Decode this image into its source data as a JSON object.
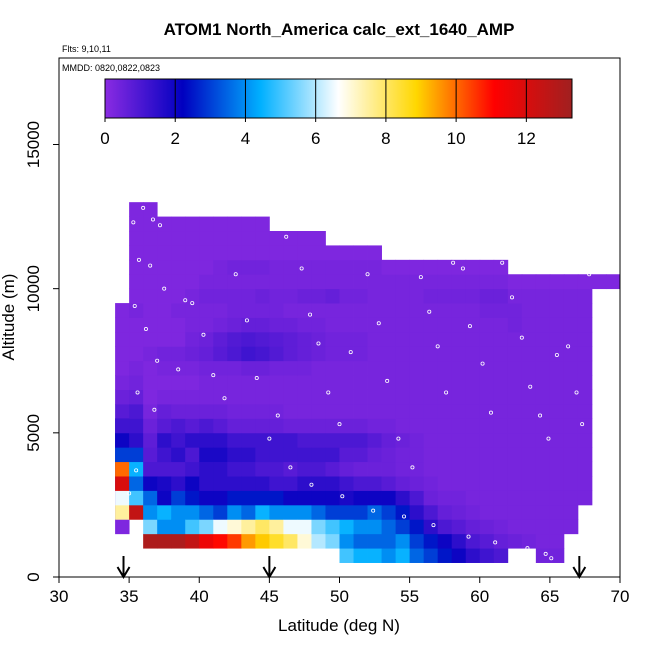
{
  "chart_data": {
    "type": "heatmap",
    "title": "ATOM1 North_America calc_ext_1640_AMP",
    "flights_note": "Flts: 9,10,11",
    "dates_note": "MMDD: 0820,0822,0823",
    "xlabel": "Latitude (deg N)",
    "ylabel": "Altitude (m)",
    "xlim": [
      30,
      70
    ],
    "ylim": [
      0,
      18000
    ],
    "x_ticks": [
      30,
      35,
      40,
      45,
      50,
      55,
      60,
      65,
      70
    ],
    "y_ticks": [
      0,
      5000,
      10000,
      15000
    ],
    "colorbar": {
      "range": [
        0,
        13.3
      ],
      "ticks": [
        0,
        2,
        4,
        6,
        8,
        10,
        12
      ],
      "stops": [
        "#8a2be2",
        "#0000c0",
        "#00b0ff",
        "#ffffff",
        "#ffd700",
        "#ff0000",
        "#a02020"
      ]
    },
    "bin_width_deg": 1,
    "bin_height_m": 500,
    "columns": [
      {
        "lat": 34.5,
        "alt_min": 1500,
        "alt_max": 9500,
        "values": [
          0.2,
          0.3,
          0.6,
          1.0,
          1.5,
          1.8,
          2.0,
          1.5,
          0.8,
          0.5,
          0.3,
          0.2,
          0.2,
          0.2,
          0.2,
          0.2
        ]
      },
      {
        "lat": 34.5,
        "alt_min": 2000,
        "alt_max": 5500,
        "values": [
          7.5,
          6.5,
          12.0,
          10.0,
          3.0,
          2.0,
          1.2
        ]
      },
      {
        "lat": 35.5,
        "alt_min": 2000,
        "alt_max": 13000,
        "values": [
          12.5,
          5.0,
          3.5,
          4.5,
          3.0,
          1.5,
          1.2,
          1.0,
          0.6,
          0.4,
          0.3,
          0.2,
          0.2,
          0.2,
          0.3,
          0.2,
          0.2,
          0.2,
          0.2,
          0.2,
          0.2,
          0.2
        ]
      },
      {
        "lat": 36.5,
        "alt_min": 1000,
        "alt_max": 13000,
        "values": [
          13.0,
          5.5,
          4.0,
          3.5,
          2.0,
          1.0,
          0.8,
          0.7,
          0.5,
          0.3,
          0.2,
          0.2,
          0.2,
          0.3,
          0.2,
          0.2,
          0.2,
          0.2,
          0.2,
          0.2,
          0.2,
          0.2,
          0.2,
          0.2
        ]
      },
      {
        "lat": 37.5,
        "alt_min": 1000,
        "alt_max": 12500,
        "values": [
          13.0,
          4.0,
          4.5,
          2.0,
          1.8,
          1.0,
          1.2,
          1.5,
          0.8,
          0.6,
          0.3,
          0.2,
          0.3,
          0.4,
          0.2,
          0.2,
          0.2,
          0.2,
          0.2,
          0.2,
          0.2,
          0.2,
          0.2
        ]
      },
      {
        "lat": 38.5,
        "alt_min": 1000,
        "alt_max": 12500,
        "values": [
          13.0,
          4.0,
          4.0,
          3.0,
          1.5,
          1.0,
          1.5,
          1.2,
          1.0,
          0.5,
          0.3,
          0.2,
          0.3,
          0.4,
          0.2,
          0.2,
          0.3,
          0.2,
          0.2,
          0.2,
          0.2,
          0.2,
          0.2
        ]
      },
      {
        "lat": 39.5,
        "alt_min": 1000,
        "alt_max": 12500,
        "values": [
          12.5,
          5.0,
          4.0,
          2.5,
          2.0,
          1.2,
          1.0,
          1.5,
          0.8,
          0.5,
          0.3,
          0.2,
          0.3,
          0.5,
          0.4,
          0.3,
          0.3,
          0.3,
          0.2,
          0.2,
          0.2,
          0.2,
          0.2
        ]
      },
      {
        "lat": 40.5,
        "alt_min": 1000,
        "alt_max": 12500,
        "values": [
          11.5,
          5.5,
          3.5,
          2.0,
          1.5,
          1.5,
          1.8,
          1.5,
          1.0,
          0.5,
          0.3,
          0.3,
          0.4,
          0.6,
          0.5,
          0.3,
          0.3,
          0.4,
          0.3,
          0.2,
          0.2,
          0.2,
          0.2
        ]
      },
      {
        "lat": 41.5,
        "alt_min": 1000,
        "alt_max": 12500,
        "values": [
          11.0,
          6.5,
          3.0,
          2.0,
          1.5,
          1.5,
          1.8,
          1.5,
          0.8,
          0.5,
          0.3,
          0.3,
          0.4,
          0.8,
          0.7,
          0.4,
          0.3,
          0.4,
          0.3,
          0.3,
          0.2,
          0.2,
          0.2
        ]
      },
      {
        "lat": 42.5,
        "alt_min": 1000,
        "alt_max": 12500,
        "values": [
          10.5,
          7.0,
          4.0,
          2.5,
          1.5,
          1.2,
          1.5,
          1.2,
          0.6,
          0.4,
          0.3,
          0.3,
          0.4,
          1.0,
          0.9,
          0.5,
          0.4,
          0.4,
          0.3,
          0.4,
          0.2,
          0.2,
          0.2
        ]
      },
      {
        "lat": 43.5,
        "alt_min": 1000,
        "alt_max": 12500,
        "values": [
          9.5,
          7.5,
          3.5,
          2.5,
          1.5,
          1.2,
          1.5,
          1.2,
          0.6,
          0.4,
          0.3,
          0.3,
          0.5,
          1.2,
          1.0,
          0.6,
          0.4,
          0.4,
          0.3,
          0.4,
          0.2,
          0.2,
          0.2
        ]
      },
      {
        "lat": 44.5,
        "alt_min": 1000,
        "alt_max": 12500,
        "values": [
          9.0,
          8.0,
          4.5,
          2.5,
          1.5,
          1.0,
          1.2,
          1.2,
          0.6,
          0.4,
          0.3,
          0.3,
          0.5,
          1.1,
          0.9,
          0.6,
          0.4,
          0.5,
          0.3,
          0.4,
          0.2,
          0.2,
          0.2
        ]
      },
      {
        "lat": 45.5,
        "alt_min": 1000,
        "alt_max": 12000,
        "values": [
          8.5,
          7.5,
          4.0,
          2.5,
          1.2,
          1.0,
          1.2,
          1.2,
          0.6,
          0.4,
          0.3,
          0.3,
          0.4,
          0.9,
          0.8,
          0.5,
          0.4,
          0.4,
          0.3,
          0.3,
          0.2,
          0.2
        ]
      },
      {
        "lat": 46.5,
        "alt_min": 1000,
        "alt_max": 12000,
        "values": [
          8.0,
          6.5,
          4.0,
          2.0,
          1.2,
          0.8,
          1.2,
          1.2,
          0.5,
          0.3,
          0.3,
          0.3,
          0.4,
          0.7,
          0.7,
          0.5,
          0.3,
          0.4,
          0.3,
          0.3,
          0.2,
          0.2
        ]
      },
      {
        "lat": 47.5,
        "alt_min": 1000,
        "alt_max": 12000,
        "values": [
          7.0,
          6.5,
          4.0,
          2.0,
          1.5,
          1.0,
          1.2,
          1.0,
          0.5,
          0.3,
          0.3,
          0.3,
          0.4,
          0.6,
          0.6,
          0.4,
          0.3,
          0.5,
          0.3,
          0.3,
          0.2,
          0.2
        ]
      },
      {
        "lat": 48.5,
        "alt_min": 1000,
        "alt_max": 12000,
        "values": [
          6.0,
          5.5,
          3.5,
          2.0,
          1.5,
          1.0,
          1.2,
          1.0,
          0.5,
          0.3,
          0.3,
          0.3,
          0.3,
          0.5,
          0.5,
          0.4,
          0.3,
          0.5,
          0.3,
          0.3,
          0.2,
          0.2
        ]
      },
      {
        "lat": 49.5,
        "alt_min": 1000,
        "alt_max": 11500,
        "values": [
          5.5,
          5.0,
          3.0,
          2.0,
          1.5,
          0.8,
          1.2,
          1.0,
          0.5,
          0.3,
          0.3,
          0.3,
          0.3,
          0.4,
          0.4,
          0.3,
          0.3,
          0.6,
          0.3,
          0.3,
          0.2
        ]
      },
      {
        "lat": 50.5,
        "alt_min": 500,
        "alt_max": 11500,
        "values": [
          5.0,
          4.0,
          4.5,
          3.0,
          1.8,
          1.2,
          0.6,
          0.8,
          1.0,
          0.5,
          0.3,
          0.3,
          0.3,
          0.3,
          0.4,
          0.4,
          0.3,
          0.3,
          0.4,
          0.3,
          0.3,
          0.2
        ]
      },
      {
        "lat": 51.5,
        "alt_min": 500,
        "alt_max": 11500,
        "values": [
          4.5,
          3.5,
          4.0,
          3.0,
          2.0,
          1.0,
          0.5,
          0.8,
          1.0,
          0.5,
          0.3,
          0.3,
          0.3,
          0.3,
          0.4,
          0.4,
          0.3,
          0.3,
          0.4,
          0.3,
          0.3,
          0.2
        ]
      },
      {
        "lat": 52.5,
        "alt_min": 500,
        "alt_max": 11500,
        "values": [
          4.5,
          3.5,
          4.0,
          3.5,
          2.0,
          1.0,
          0.5,
          0.6,
          0.8,
          0.4,
          0.3,
          0.3,
          0.3,
          0.3,
          0.3,
          0.3,
          0.3,
          0.3,
          0.3,
          0.3,
          0.3,
          0.2
        ]
      },
      {
        "lat": 53.5,
        "alt_min": 500,
        "alt_max": 11000,
        "values": [
          4.0,
          3.5,
          3.5,
          3.0,
          2.0,
          0.8,
          0.5,
          0.5,
          0.6,
          0.4,
          0.3,
          0.3,
          0.3,
          0.3,
          0.3,
          0.3,
          0.3,
          0.3,
          0.3,
          0.3,
          0.2
        ]
      },
      {
        "lat": 54.5,
        "alt_min": 500,
        "alt_max": 11000,
        "values": [
          4.5,
          4.0,
          3.0,
          2.5,
          1.5,
          0.6,
          0.4,
          0.4,
          0.5,
          0.3,
          0.3,
          0.3,
          0.3,
          0.3,
          0.3,
          0.3,
          0.3,
          0.3,
          0.3,
          0.3,
          0.2
        ]
      },
      {
        "lat": 55.5,
        "alt_min": 500,
        "alt_max": 11000,
        "values": [
          3.5,
          3.0,
          2.5,
          1.5,
          1.0,
          0.5,
          0.4,
          0.4,
          0.4,
          0.3,
          0.3,
          0.3,
          0.3,
          0.3,
          0.3,
          0.3,
          0.3,
          0.3,
          0.3,
          0.3,
          0.2
        ]
      },
      {
        "lat": 56.5,
        "alt_min": 500,
        "alt_max": 11000,
        "values": [
          3.0,
          2.5,
          1.5,
          1.0,
          0.5,
          0.4,
          0.3,
          0.3,
          0.3,
          0.3,
          0.3,
          0.3,
          0.3,
          0.3,
          0.3,
          0.3,
          0.3,
          0.3,
          0.4,
          0.3,
          0.2
        ]
      },
      {
        "lat": 57.5,
        "alt_min": 500,
        "alt_max": 11000,
        "values": [
          2.5,
          2.0,
          1.0,
          0.6,
          0.4,
          0.3,
          0.3,
          0.3,
          0.3,
          0.3,
          0.3,
          0.3,
          0.3,
          0.3,
          0.3,
          0.3,
          0.3,
          0.3,
          0.4,
          0.3,
          0.2
        ]
      },
      {
        "lat": 58.5,
        "alt_min": 500,
        "alt_max": 11000,
        "values": [
          2.0,
          1.5,
          0.8,
          0.5,
          0.4,
          0.3,
          0.3,
          0.3,
          0.3,
          0.3,
          0.3,
          0.3,
          0.3,
          0.3,
          0.3,
          0.3,
          0.3,
          0.3,
          0.4,
          0.3,
          0.2
        ]
      },
      {
        "lat": 59.5,
        "alt_min": 500,
        "alt_max": 11000,
        "values": [
          1.5,
          1.0,
          0.6,
          0.4,
          0.3,
          0.3,
          0.3,
          0.3,
          0.3,
          0.3,
          0.3,
          0.3,
          0.3,
          0.3,
          0.3,
          0.3,
          0.3,
          0.3,
          0.4,
          0.3,
          0.2
        ]
      },
      {
        "lat": 60.5,
        "alt_min": 500,
        "alt_max": 11000,
        "values": [
          1.2,
          0.8,
          0.5,
          0.3,
          0.3,
          0.3,
          0.3,
          0.3,
          0.3,
          0.3,
          0.3,
          0.3,
          0.3,
          0.3,
          0.3,
          0.3,
          0.3,
          0.4,
          0.5,
          0.3,
          0.2
        ]
      },
      {
        "lat": 61.5,
        "alt_min": 500,
        "alt_max": 11000,
        "values": [
          1.0,
          0.6,
          0.4,
          0.3,
          0.3,
          0.3,
          0.3,
          0.3,
          0.3,
          0.3,
          0.3,
          0.3,
          0.3,
          0.3,
          0.3,
          0.3,
          0.3,
          0.4,
          0.5,
          0.3,
          0.2
        ]
      },
      {
        "lat": 62.5,
        "alt_min": 1000,
        "alt_max": 10500,
        "values": [
          0.5,
          0.3,
          0.3,
          0.3,
          0.3,
          0.3,
          0.3,
          0.3,
          0.3,
          0.3,
          0.3,
          0.3,
          0.3,
          0.3,
          0.3,
          0.4,
          0.4,
          0.3,
          0.2
        ]
      },
      {
        "lat": 63.5,
        "alt_min": 1000,
        "alt_max": 10500,
        "values": [
          0.4,
          0.3,
          0.3,
          0.3,
          0.3,
          0.3,
          0.3,
          0.3,
          0.3,
          0.3,
          0.3,
          0.3,
          0.3,
          0.3,
          0.3,
          0.3,
          0.3,
          0.3,
          0.2
        ]
      },
      {
        "lat": 64.5,
        "alt_min": 500,
        "alt_max": 10500,
        "values": [
          0.4,
          0.3,
          0.3,
          0.3,
          0.3,
          0.3,
          0.3,
          0.3,
          0.3,
          0.3,
          0.3,
          0.3,
          0.3,
          0.3,
          0.3,
          0.3,
          0.3,
          0.3,
          0.3,
          0.2
        ]
      },
      {
        "lat": 65.5,
        "alt_min": 500,
        "alt_max": 10500,
        "values": [
          0.4,
          0.3,
          0.3,
          0.3,
          0.3,
          0.3,
          0.3,
          0.3,
          0.3,
          0.3,
          0.3,
          0.3,
          0.3,
          0.3,
          0.3,
          0.3,
          0.3,
          0.3,
          0.3,
          0.2
        ]
      },
      {
        "lat": 66.5,
        "alt_min": 1500,
        "alt_max": 10500,
        "values": [
          0.3,
          0.3,
          0.3,
          0.3,
          0.3,
          0.3,
          0.3,
          0.3,
          0.3,
          0.3,
          0.3,
          0.3,
          0.3,
          0.3,
          0.3,
          0.3,
          0.3,
          0.2
        ]
      },
      {
        "lat": 67.5,
        "alt_min": 2500,
        "alt_max": 10500,
        "values": [
          0.3,
          0.3,
          0.3,
          0.3,
          0.3,
          0.3,
          0.3,
          0.3,
          0.3,
          0.3,
          0.3,
          0.3,
          0.3,
          0.3,
          0.3,
          0.2
        ]
      },
      {
        "lat": 68.5,
        "alt_min": 10000,
        "alt_max": 10500,
        "values": [
          0.2
        ]
      },
      {
        "lat": 69.5,
        "alt_min": 10000,
        "alt_max": 10500,
        "values": [
          0.2
        ]
      }
    ],
    "arrows_lat": [
      34.6,
      45.0,
      67.1
    ],
    "sample_points": [
      [
        35.3,
        12300
      ],
      [
        36.0,
        12800
      ],
      [
        36.7,
        12400
      ],
      [
        37.2,
        12200
      ],
      [
        35.7,
        11000
      ],
      [
        36.5,
        10800
      ],
      [
        37.5,
        10000
      ],
      [
        35.4,
        9400
      ],
      [
        36.2,
        8600
      ],
      [
        37.0,
        7500
      ],
      [
        35.6,
        6400
      ],
      [
        36.8,
        5800
      ],
      [
        38.5,
        7200
      ],
      [
        39.0,
        9600
      ],
      [
        39.5,
        9500
      ],
      [
        40.3,
        8400
      ],
      [
        41.0,
        7000
      ],
      [
        41.8,
        6200
      ],
      [
        42.6,
        10500
      ],
      [
        43.4,
        8900
      ],
      [
        44.1,
        6900
      ],
      [
        45.6,
        5600
      ],
      [
        46.2,
        11800
      ],
      [
        47.3,
        10700
      ],
      [
        47.9,
        9100
      ],
      [
        48.5,
        8100
      ],
      [
        49.2,
        6400
      ],
      [
        50.0,
        5300
      ],
      [
        50.8,
        7800
      ],
      [
        51.5,
        11600
      ],
      [
        52.0,
        10500
      ],
      [
        52.8,
        8800
      ],
      [
        53.4,
        6800
      ],
      [
        54.2,
        4800
      ],
      [
        55.2,
        3800
      ],
      [
        55.8,
        10400
      ],
      [
        56.4,
        9200
      ],
      [
        57.0,
        8000
      ],
      [
        57.6,
        6400
      ],
      [
        58.1,
        10900
      ],
      [
        58.8,
        10700
      ],
      [
        59.3,
        8700
      ],
      [
        60.2,
        7400
      ],
      [
        60.8,
        5700
      ],
      [
        61.6,
        10900
      ],
      [
        62.3,
        9700
      ],
      [
        63.0,
        8300
      ],
      [
        63.6,
        6600
      ],
      [
        64.3,
        5600
      ],
      [
        64.9,
        4800
      ],
      [
        65.5,
        7700
      ],
      [
        66.3,
        8000
      ],
      [
        66.9,
        6400
      ],
      [
        67.3,
        5300
      ],
      [
        67.8,
        10500
      ],
      [
        68.4,
        10600
      ],
      [
        45.0,
        4800
      ],
      [
        46.5,
        3800
      ],
      [
        48.0,
        3200
      ],
      [
        50.2,
        2800
      ],
      [
        52.4,
        2300
      ],
      [
        54.6,
        2100
      ],
      [
        56.7,
        1800
      ],
      [
        59.2,
        1400
      ],
      [
        61.1,
        1200
      ],
      [
        63.4,
        1000
      ],
      [
        64.7,
        800
      ],
      [
        65.1,
        650
      ],
      [
        35.0,
        2900
      ],
      [
        35.5,
        3700
      ]
    ]
  }
}
